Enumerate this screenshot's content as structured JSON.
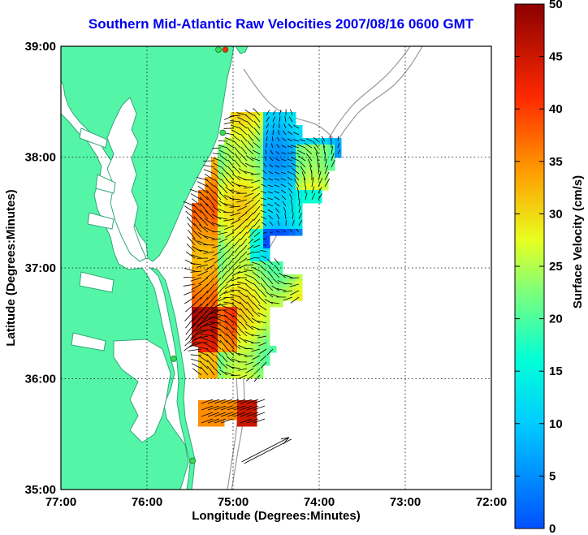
{
  "title": "Southern Mid-Atlantic Raw Velocities 2007/08/16 0600 GMT",
  "map": {
    "xlabel": "Longitude (Degrees:Minutes)",
    "ylabel": "Latitude (Degrees:Minutes)",
    "x_ticks": [
      "77:00",
      "76:00",
      "75:00",
      "74:00",
      "73:00",
      "72:00"
    ],
    "y_ticks": [
      "39:00",
      "38:00",
      "37:00",
      "36:00",
      "35:00"
    ],
    "lon_range": [
      -77,
      -72
    ],
    "lat_range": [
      35,
      39
    ],
    "land_color": "#55f5a8",
    "grid": "dotted",
    "stations": [
      {
        "lon": -75.09,
        "lat": 38.97,
        "color": "#ff2a00"
      },
      {
        "lon": -75.17,
        "lat": 38.97,
        "color": "#33dd55"
      },
      {
        "lon": -75.12,
        "lat": 38.22,
        "color": "#33dd55"
      },
      {
        "lon": -75.69,
        "lat": 36.18,
        "color": "#33dd55"
      },
      {
        "lon": -75.47,
        "lat": 35.26,
        "color": "#33dd55"
      }
    ],
    "reference_vector": {
      "lon": -74.9,
      "lat": 35.25,
      "dlon": 0.55,
      "dlat": 0.22
    }
  },
  "colorbar": {
    "label": "Surface Velocity (cm/s)",
    "ticks": [
      "0",
      "5",
      "10",
      "15",
      "20",
      "25",
      "30",
      "35",
      "40",
      "45",
      "50"
    ],
    "min": 0,
    "max": 50
  }
}
